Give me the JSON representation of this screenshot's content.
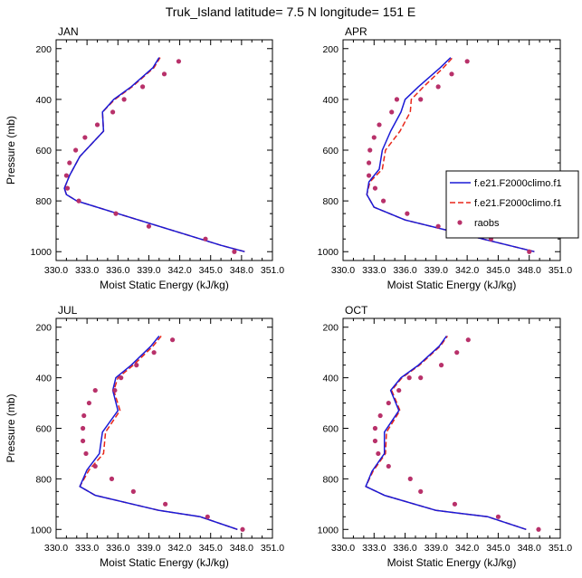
{
  "figure": {
    "title": "Truk_Island  latitude= 7.5 N longitude= 151 E"
  },
  "colors": {
    "model1": "#1a1ad6",
    "model2": "#e8271a",
    "raobs": "#b8316a",
    "axis": "#000000"
  },
  "legend": {
    "entries": [
      "f.e21.F2000climo.f1",
      "f.e21.F2000climo.f1",
      "raobs"
    ],
    "location": "right of APR panel"
  },
  "chart_data": [
    {
      "type": "line",
      "title": "JAN",
      "xlabel": "Moist Static Energy (kJ/kg)",
      "ylabel": "Pressure (mb)",
      "xlim": [
        330,
        351
      ],
      "ylim": [
        1000,
        200
      ],
      "y_reversed": true,
      "x_ticks": [
        "330.0",
        "333.0",
        "336.0",
        "339.0",
        "342.0",
        "345.0",
        "348.0",
        "351.0"
      ],
      "y_ticks": [
        "200",
        "400",
        "600",
        "800",
        "1000"
      ],
      "series": [
        {
          "name": "f.e21.F2000climo.f1",
          "style": "solid",
          "x": [
            348.3,
            346.0,
            342.0,
            336.0,
            332.0,
            331.0,
            330.8,
            331.3,
            332.3,
            334.6,
            334.5,
            335.6,
            337.3,
            339.4,
            340.0
          ],
          "y": [
            1000,
            975,
            925,
            850,
            800,
            775,
            750,
            700,
            625,
            525,
            450,
            400,
            350,
            275,
            235
          ]
        },
        {
          "name": "f.e21.F2000climo.f1",
          "style": "dashed",
          "x": [
            348.3,
            346.0,
            342.0,
            336.0,
            332.0,
            331.0,
            330.8,
            331.3,
            332.3,
            334.6,
            334.5,
            335.7,
            337.4,
            339.5,
            340.1
          ],
          "y": [
            1000,
            975,
            925,
            850,
            800,
            775,
            750,
            700,
            625,
            525,
            450,
            400,
            350,
            275,
            235
          ]
        },
        {
          "name": "raobs",
          "style": "markers",
          "x": [
            347.3,
            344.5,
            339.0,
            335.8,
            332.2,
            331.1,
            331.0,
            331.3,
            331.9,
            332.8,
            334.0,
            335.5,
            336.6,
            338.4,
            340.5,
            341.9
          ],
          "y": [
            1000,
            950,
            900,
            850,
            800,
            750,
            700,
            650,
            600,
            550,
            500,
            450,
            400,
            350,
            300,
            250
          ]
        }
      ]
    },
    {
      "type": "line",
      "title": "APR",
      "xlabel": "Moist Static Energy (kJ/kg)",
      "ylabel": "",
      "xlim": [
        330,
        351
      ],
      "ylim": [
        1000,
        200
      ],
      "y_reversed": true,
      "x_ticks": [
        "330.0",
        "333.0",
        "336.0",
        "339.0",
        "342.0",
        "345.0",
        "348.0",
        "351.0"
      ],
      "y_ticks": [
        "200",
        "400",
        "600",
        "800",
        "1000"
      ],
      "series": [
        {
          "name": "f.e21.F2000climo.f1",
          "style": "solid",
          "x": [
            348.5,
            346.0,
            341.0,
            336.0,
            333.0,
            332.3,
            332.5,
            333.5,
            333.8,
            334.6,
            335.6,
            336.0,
            337.3,
            339.4,
            340.4
          ],
          "y": [
            1000,
            975,
            925,
            875,
            825,
            775,
            725,
            675,
            600,
            525,
            450,
            400,
            350,
            275,
            235
          ]
        },
        {
          "name": "f.e21.F2000climo.f1",
          "style": "dashed",
          "x": [
            348.5,
            346.0,
            341.0,
            336.0,
            333.0,
            332.3,
            332.6,
            333.8,
            334.1,
            335.5,
            336.5,
            336.6,
            337.8,
            339.7,
            340.6
          ],
          "y": [
            1000,
            975,
            925,
            875,
            825,
            775,
            725,
            675,
            600,
            525,
            450,
            400,
            350,
            275,
            235
          ]
        },
        {
          "name": "raobs",
          "style": "markers",
          "x": [
            348.0,
            344.3,
            339.2,
            336.2,
            333.9,
            333.1,
            332.5,
            332.5,
            332.6,
            333.0,
            333.5,
            334.7,
            335.2,
            337.5,
            339.2,
            340.5,
            342.0
          ],
          "y": [
            1000,
            950,
            900,
            850,
            800,
            750,
            700,
            650,
            600,
            550,
            500,
            450,
            400,
            400,
            350,
            300,
            250
          ]
        }
      ]
    },
    {
      "type": "line",
      "title": "JUL",
      "xlabel": "Moist Static Energy (kJ/kg)",
      "ylabel": "Pressure (mb)",
      "xlim": [
        330,
        351
      ],
      "ylim": [
        1000,
        200
      ],
      "y_reversed": true,
      "x_ticks": [
        "330.0",
        "333.0",
        "336.0",
        "339.0",
        "342.0",
        "345.0",
        "348.0",
        "351.0"
      ],
      "y_ticks": [
        "200",
        "400",
        "600",
        "800",
        "1000"
      ],
      "series": [
        {
          "name": "f.e21.F2000climo.f1",
          "style": "solid",
          "x": [
            347.6,
            344.0,
            340.0,
            333.8,
            332.3,
            333.0,
            334.2,
            334.5,
            336.0,
            335.5,
            335.8,
            337.3,
            339.2,
            340.0
          ],
          "y": [
            1000,
            950,
            925,
            865,
            830,
            765,
            700,
            615,
            530,
            450,
            400,
            350,
            275,
            235
          ]
        },
        {
          "name": "f.e21.F2000climo.f1",
          "style": "dashed",
          "x": [
            347.6,
            344.0,
            340.0,
            333.8,
            332.3,
            333.2,
            334.6,
            334.8,
            336.2,
            335.6,
            336.0,
            337.5,
            339.4,
            340.2
          ],
          "y": [
            1000,
            950,
            925,
            865,
            830,
            765,
            700,
            615,
            530,
            450,
            400,
            350,
            275,
            235
          ]
        },
        {
          "name": "raobs",
          "style": "markers",
          "x": [
            348.1,
            344.7,
            340.6,
            337.5,
            335.4,
            333.8,
            332.9,
            332.6,
            332.6,
            332.7,
            333.2,
            333.8,
            335.7,
            336.3,
            337.8,
            339.5,
            341.3
          ],
          "y": [
            1000,
            950,
            900,
            850,
            800,
            750,
            700,
            650,
            600,
            550,
            500,
            450,
            450,
            400,
            350,
            300,
            250
          ]
        }
      ]
    },
    {
      "type": "line",
      "title": "OCT",
      "xlabel": "Moist Static Energy (kJ/kg)",
      "ylabel": "",
      "xlim": [
        330,
        351
      ],
      "ylim": [
        1000,
        200
      ],
      "y_reversed": true,
      "x_ticks": [
        "330.0",
        "333.0",
        "336.0",
        "339.0",
        "342.0",
        "345.0",
        "348.0",
        "351.0"
      ],
      "y_ticks": [
        "200",
        "400",
        "600",
        "800",
        "1000"
      ],
      "series": [
        {
          "name": "f.e21.F2000climo.f1",
          "style": "solid",
          "x": [
            347.7,
            344.0,
            339.0,
            334.0,
            332.2,
            332.8,
            334.0,
            334.0,
            335.4,
            334.6,
            335.6,
            337.3,
            339.3,
            340.0
          ],
          "y": [
            1000,
            950,
            925,
            865,
            830,
            770,
            700,
            615,
            530,
            450,
            400,
            350,
            275,
            235
          ]
        },
        {
          "name": "f.e21.F2000climo.f1",
          "style": "dashed",
          "x": [
            347.7,
            344.0,
            339.0,
            334.0,
            332.2,
            332.9,
            334.1,
            334.2,
            335.5,
            334.7,
            335.7,
            337.4,
            339.4,
            340.1
          ],
          "y": [
            1000,
            950,
            925,
            865,
            830,
            770,
            700,
            615,
            530,
            450,
            400,
            350,
            275,
            235
          ]
        },
        {
          "name": "raobs",
          "style": "markers",
          "x": [
            348.9,
            345.0,
            340.8,
            337.5,
            336.5,
            334.4,
            333.4,
            333.1,
            333.1,
            333.6,
            334.4,
            335.4,
            336.4,
            337.5,
            339.5,
            341.0,
            342.1
          ],
          "y": [
            1000,
            950,
            900,
            850,
            800,
            750,
            700,
            650,
            600,
            550,
            500,
            450,
            400,
            400,
            350,
            300,
            250
          ]
        }
      ]
    }
  ]
}
